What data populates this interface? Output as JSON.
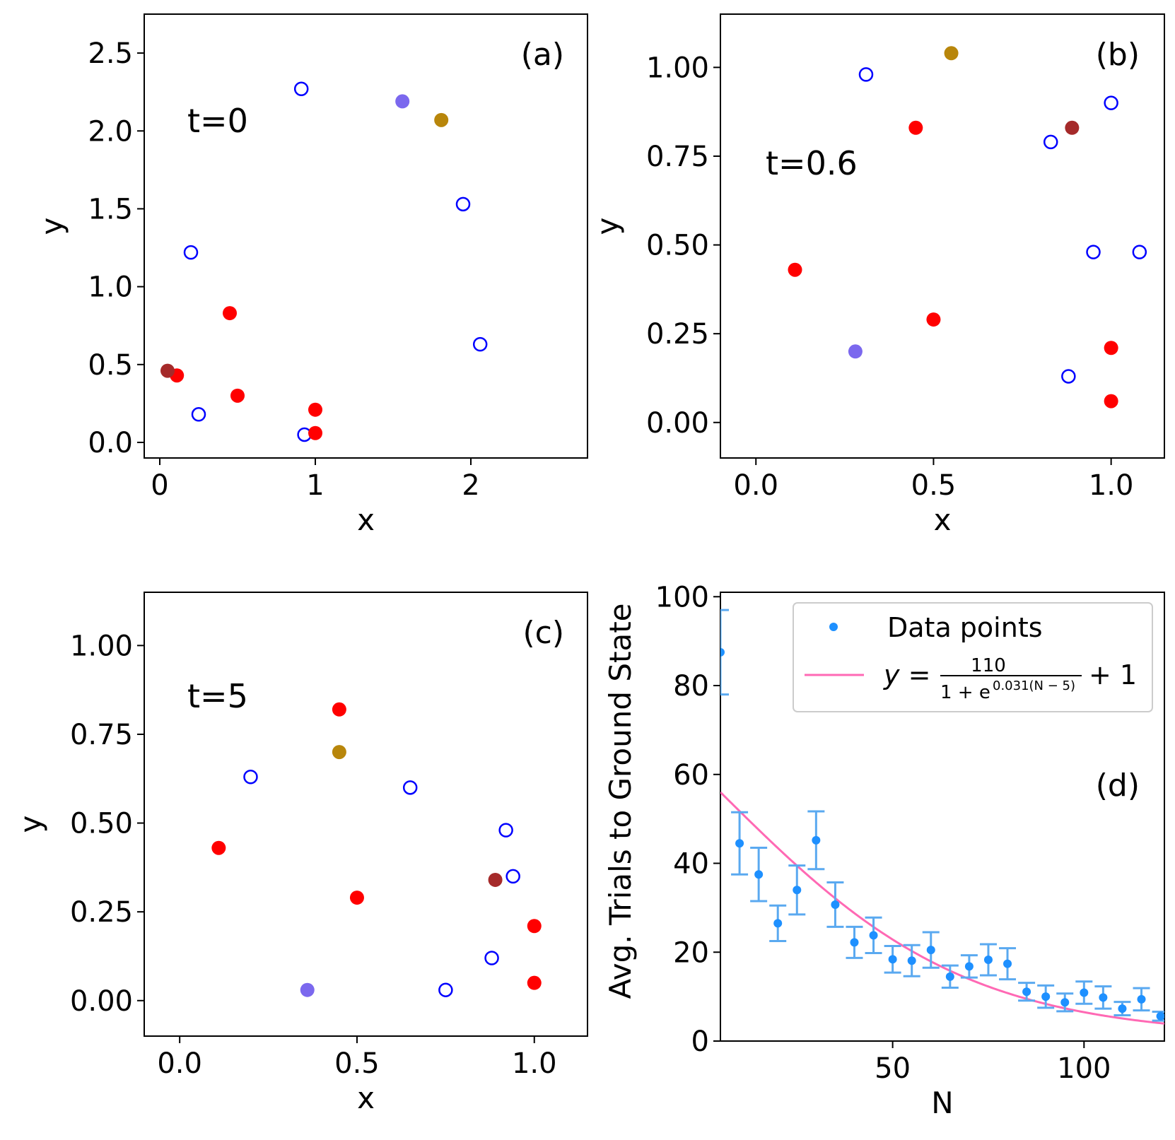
{
  "colors": {
    "open_marker": "#0000ff",
    "red": "#ff0000",
    "brown": "#a52a2a",
    "purple": "#7b68ee",
    "gold": "#b8860b",
    "data_points": "#1e90ff",
    "error_bars": "#5aa9f0",
    "fit_line": "#ff69b4"
  },
  "chart_data": [
    {
      "type": "scatter",
      "panel_label": "(a)",
      "annotation": "t=0",
      "xlabel": "x",
      "ylabel": "y",
      "xlim": [
        -0.1,
        2.75
      ],
      "ylim": [
        -0.1,
        2.75
      ],
      "xticks": [
        0,
        1,
        2
      ],
      "xtick_labels": [
        "0",
        "1",
        "2"
      ],
      "yticks": [
        0.0,
        0.5,
        1.0,
        1.5,
        2.0,
        2.5
      ],
      "ytick_labels": [
        "0.0",
        "0.5",
        "1.0",
        "1.5",
        "2.0",
        "2.5"
      ],
      "series": [
        {
          "marker": "open",
          "color": "#0000ff",
          "points": [
            [
              0.91,
              2.27
            ],
            [
              0.2,
              1.22
            ],
            [
              1.95,
              1.53
            ],
            [
              2.06,
              0.63
            ],
            [
              0.25,
              0.18
            ],
            [
              0.93,
              0.05
            ]
          ]
        },
        {
          "marker": "filled",
          "color": "#ff0000",
          "points": [
            [
              0.45,
              0.83
            ],
            [
              0.11,
              0.43
            ],
            [
              0.5,
              0.3
            ],
            [
              1.0,
              0.21
            ],
            [
              1.0,
              0.06
            ]
          ]
        },
        {
          "marker": "filled",
          "color": "#a52a2a",
          "points": [
            [
              0.05,
              0.46
            ]
          ]
        },
        {
          "marker": "filled",
          "color": "#7b68ee",
          "points": [
            [
              1.56,
              2.19
            ]
          ]
        },
        {
          "marker": "filled",
          "color": "#b8860b",
          "points": [
            [
              1.81,
              2.07
            ]
          ]
        }
      ]
    },
    {
      "type": "scatter",
      "panel_label": "(b)",
      "annotation": "t=0.6",
      "xlabel": "x",
      "ylabel": "y",
      "xlim": [
        -0.1,
        1.15
      ],
      "ylim": [
        -0.1,
        1.15
      ],
      "xticks": [
        0.0,
        0.5,
        1.0
      ],
      "xtick_labels": [
        "0.0",
        "0.5",
        "1.0"
      ],
      "yticks": [
        0.0,
        0.25,
        0.5,
        0.75,
        1.0
      ],
      "ytick_labels": [
        "0.00",
        "0.25",
        "0.50",
        "0.75",
        "1.00"
      ],
      "series": [
        {
          "marker": "open",
          "color": "#0000ff",
          "points": [
            [
              0.31,
              0.98
            ],
            [
              1.0,
              0.9
            ],
            [
              0.83,
              0.79
            ],
            [
              0.95,
              0.48
            ],
            [
              1.08,
              0.48
            ],
            [
              0.88,
              0.13
            ]
          ]
        },
        {
          "marker": "filled",
          "color": "#ff0000",
          "points": [
            [
              0.45,
              0.83
            ],
            [
              0.11,
              0.43
            ],
            [
              0.5,
              0.29
            ],
            [
              1.0,
              0.21
            ],
            [
              1.0,
              0.06
            ]
          ]
        },
        {
          "marker": "filled",
          "color": "#a52a2a",
          "points": [
            [
              0.89,
              0.83
            ]
          ]
        },
        {
          "marker": "filled",
          "color": "#7b68ee",
          "points": [
            [
              0.28,
              0.2
            ]
          ]
        },
        {
          "marker": "filled",
          "color": "#b8860b",
          "points": [
            [
              0.55,
              1.04
            ]
          ]
        }
      ]
    },
    {
      "type": "scatter",
      "panel_label": "(c)",
      "annotation": "t=5",
      "xlabel": "x",
      "ylabel": "y",
      "xlim": [
        -0.1,
        1.15
      ],
      "ylim": [
        -0.1,
        1.15
      ],
      "xticks": [
        0.0,
        0.5,
        1.0
      ],
      "xtick_labels": [
        "0.0",
        "0.5",
        "1.0"
      ],
      "yticks": [
        0.0,
        0.25,
        0.5,
        0.75,
        1.0
      ],
      "ytick_labels": [
        "0.00",
        "0.25",
        "0.50",
        "0.75",
        "1.00"
      ],
      "series": [
        {
          "marker": "open",
          "color": "#0000ff",
          "points": [
            [
              0.2,
              0.63
            ],
            [
              0.65,
              0.6
            ],
            [
              0.92,
              0.48
            ],
            [
              0.94,
              0.35
            ],
            [
              0.88,
              0.12
            ],
            [
              0.75,
              0.03
            ]
          ]
        },
        {
          "marker": "filled",
          "color": "#ff0000",
          "points": [
            [
              0.45,
              0.82
            ],
            [
              0.11,
              0.43
            ],
            [
              0.5,
              0.29
            ],
            [
              1.0,
              0.21
            ],
            [
              1.0,
              0.05
            ]
          ]
        },
        {
          "marker": "filled",
          "color": "#a52a2a",
          "points": [
            [
              0.89,
              0.34
            ]
          ]
        },
        {
          "marker": "filled",
          "color": "#7b68ee",
          "points": [
            [
              0.36,
              0.03
            ]
          ]
        },
        {
          "marker": "filled",
          "color": "#b8860b",
          "points": [
            [
              0.45,
              0.7
            ]
          ]
        }
      ]
    },
    {
      "type": "scatter",
      "panel_label": "(d)",
      "xlabel": "N",
      "ylabel": "Avg. Trials to Ground State",
      "xlim": [
        5,
        121
      ],
      "ylim": [
        0,
        101
      ],
      "xticks": [
        50,
        100
      ],
      "xtick_labels": [
        "50",
        "100"
      ],
      "yticks": [
        0,
        20,
        40,
        60,
        80,
        100
      ],
      "ytick_labels": [
        "0",
        "20",
        "40",
        "60",
        "80",
        "100"
      ],
      "legend_position": "top-right",
      "series": [
        {
          "name": "Data points",
          "marker": "dot",
          "color": "#1e90ff",
          "x": [
            5,
            10,
            15,
            20,
            25,
            30,
            35,
            40,
            45,
            50,
            55,
            60,
            65,
            70,
            75,
            80,
            85,
            90,
            95,
            100,
            105,
            110,
            115,
            120
          ],
          "y": [
            87.5,
            44.5,
            37.5,
            26.5,
            34,
            45.2,
            30.7,
            22.2,
            23.8,
            18.4,
            18.1,
            20.5,
            14.5,
            16.8,
            18.3,
            17.4,
            11.1,
            10,
            8.7,
            10.9,
            9.8,
            7.3,
            9.4,
            5.6
          ],
          "yerr": [
            9.5,
            7,
            6,
            4,
            5.5,
            6.5,
            5,
            3.5,
            4,
            3,
            3.5,
            4,
            2.5,
            2.5,
            3.5,
            3.5,
            2,
            2.5,
            2,
            2.5,
            2.5,
            1.5,
            2.5,
            1
          ]
        },
        {
          "name": "fit",
          "marker": "line",
          "color": "#ff69b4",
          "function": "110/(1+exp(0.031*(N-5)))+1"
        }
      ],
      "legend": {
        "data_label": "Data points",
        "fit_label": {
          "prefix": "y =",
          "numerator": "110",
          "denominator_base": "1 + e",
          "denominator_exp": "0.031(N − 5)",
          "suffix": "+ 1"
        }
      }
    }
  ]
}
